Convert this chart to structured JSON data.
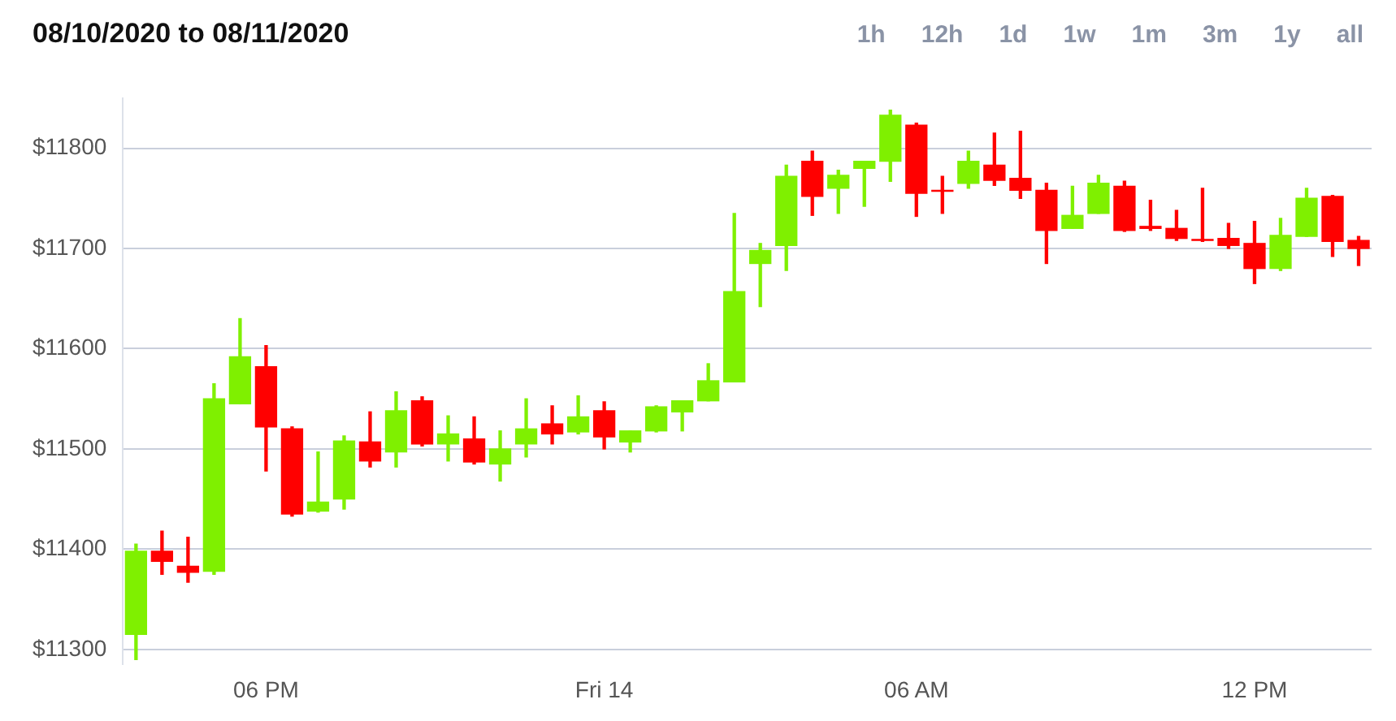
{
  "chart_data": {
    "type": "candlestick",
    "title": "08/10/2020 to 08/11/2020",
    "annotations": [
      "1h",
      "12h",
      "1d",
      "1w",
      "1m",
      "3m",
      "1y",
      "all"
    ],
    "categories": [
      null,
      null,
      null,
      null,
      null,
      "06 PM",
      null,
      null,
      null,
      null,
      null,
      null,
      null,
      null,
      null,
      null,
      null,
      null,
      "Fri 14",
      null,
      null,
      null,
      null,
      null,
      null,
      null,
      null,
      null,
      null,
      null,
      "06 AM",
      null,
      null,
      null,
      null,
      null,
      null,
      null,
      null,
      null,
      null,
      null,
      null,
      "12 PM",
      null,
      null,
      null,
      null
    ],
    "ohlc": [
      [
        11315,
        11405,
        11290,
        11398
      ],
      [
        11398,
        11418,
        11375,
        11388
      ],
      [
        11383,
        11412,
        11367,
        11377
      ],
      [
        11378,
        11565,
        11375,
        11550
      ],
      [
        11545,
        11630,
        11545,
        11592
      ],
      [
        11582,
        11603,
        11478,
        11522
      ],
      [
        11520,
        11522,
        11433,
        11435
      ],
      [
        11438,
        11497,
        11437,
        11447
      ],
      [
        11450,
        11513,
        11440,
        11508
      ],
      [
        11507,
        11537,
        11482,
        11488
      ],
      [
        11497,
        11557,
        11482,
        11538
      ],
      [
        11548,
        11552,
        11503,
        11505
      ],
      [
        11505,
        11533,
        11488,
        11515
      ],
      [
        11510,
        11532,
        11485,
        11487
      ],
      [
        11485,
        11518,
        11468,
        11500
      ],
      [
        11505,
        11550,
        11492,
        11520
      ],
      [
        11525,
        11543,
        11505,
        11515
      ],
      [
        11517,
        11553,
        11515,
        11532
      ],
      [
        11538,
        11547,
        11500,
        11512
      ],
      [
        11507,
        11518,
        11497,
        11518
      ],
      [
        11518,
        11543,
        11517,
        11542
      ],
      [
        11537,
        11548,
        11518,
        11548
      ],
      [
        11548,
        11585,
        11548,
        11568
      ],
      [
        11567,
        11735,
        11567,
        11657
      ],
      [
        11685,
        11705,
        11642,
        11698
      ],
      [
        11703,
        11783,
        11678,
        11772
      ],
      [
        11787,
        11797,
        11733,
        11752
      ],
      [
        11760,
        11778,
        11735,
        11773
      ],
      [
        11780,
        11787,
        11742,
        11787
      ],
      [
        11787,
        11838,
        11767,
        11833
      ],
      [
        11823,
        11825,
        11732,
        11755
      ],
      [
        11758,
        11772,
        11735,
        11757
      ],
      [
        11765,
        11797,
        11760,
        11787
      ],
      [
        11783,
        11815,
        11763,
        11768
      ],
      [
        11770,
        11817,
        11750,
        11758
      ],
      [
        11758,
        11765,
        11685,
        11718
      ],
      [
        11720,
        11762,
        11720,
        11733
      ],
      [
        11735,
        11773,
        11735,
        11765
      ],
      [
        11762,
        11767,
        11717,
        11718
      ],
      [
        11722,
        11748,
        11718,
        11720
      ],
      [
        11720,
        11738,
        11708,
        11710
      ],
      [
        11709,
        11760,
        11707,
        11708
      ],
      [
        11710,
        11725,
        11700,
        11703
      ],
      [
        11705,
        11727,
        11665,
        11680
      ],
      [
        11680,
        11730,
        11678,
        11713
      ],
      [
        11712,
        11760,
        11712,
        11750
      ],
      [
        11752,
        11753,
        11692,
        11707
      ],
      [
        11708,
        11712,
        11683,
        11700
      ]
    ],
    "colors": [
      "#7ff000",
      "#ff0000",
      "#ff0000",
      "#7ff000",
      "#7ff000",
      "#ff0000",
      "#ff0000",
      "#7ff000",
      "#7ff000",
      "#ff0000",
      "#7ff000",
      "#ff0000",
      "#7ff000",
      "#ff0000",
      "#7ff000",
      "#7ff000",
      "#ff0000",
      "#7ff000",
      "#ff0000",
      "#7ff000",
      "#7ff000",
      "#7ff000",
      "#7ff000",
      "#7ff000",
      "#7ff000",
      "#7ff000",
      "#ff0000",
      "#7ff000",
      "#7ff000",
      "#7ff000",
      "#ff0000",
      "#ff0000",
      "#7ff000",
      "#ff0000",
      "#ff0000",
      "#ff0000",
      "#7ff000",
      "#7ff000",
      "#ff0000",
      "#ff0000",
      "#ff0000",
      "#ff0000",
      "#ff0000",
      "#ff0000",
      "#7ff000",
      "#7ff000",
      "#ff0000",
      "#ff0000"
    ],
    "ylim": [
      11285,
      11850
    ],
    "yticks": [
      {
        "value": 11300,
        "label": "$11300"
      },
      {
        "value": 11400,
        "label": "$11400"
      },
      {
        "value": 11500,
        "label": "$11500"
      },
      {
        "value": 11600,
        "label": "$11600"
      },
      {
        "value": 11700,
        "label": "$11700"
      },
      {
        "value": 11800,
        "label": "$11800"
      }
    ],
    "grid": "y",
    "legend": false
  }
}
